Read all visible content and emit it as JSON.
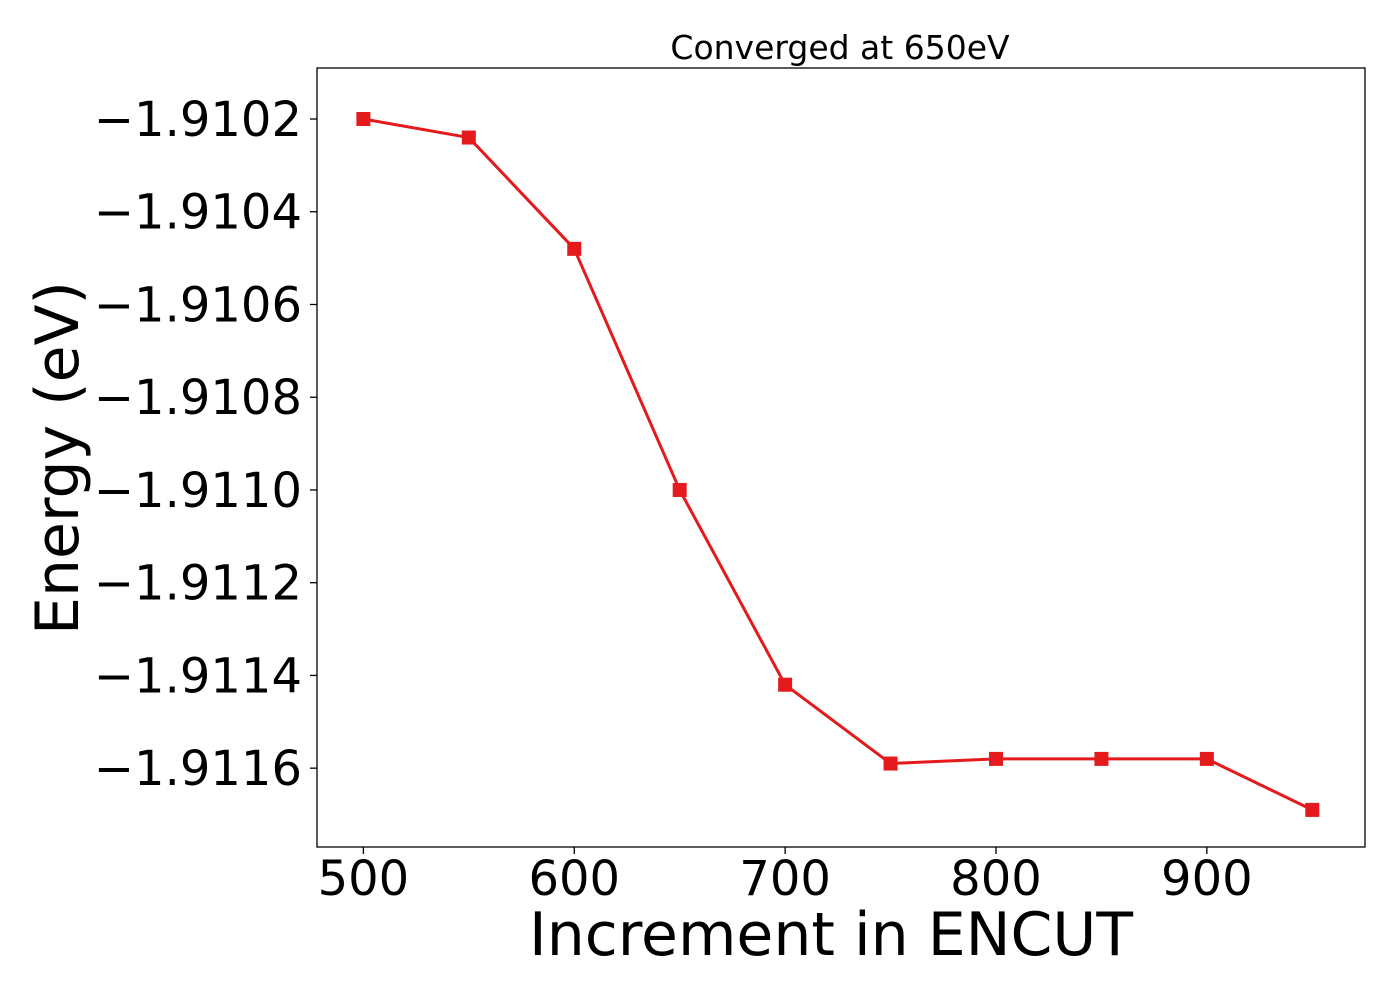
{
  "chart_data": {
    "type": "line",
    "title": "Converged at 650eV",
    "xlabel": "Increment in ENCUT",
    "ylabel": "Energy (eV)",
    "xlim": [
      478,
      975
    ],
    "ylim": [
      -1.91177,
      -1.91009
    ],
    "xticks": [
      500,
      600,
      700,
      800,
      900
    ],
    "xtick_labels": [
      "500",
      "600",
      "700",
      "800",
      "900"
    ],
    "yticks": [
      -1.9102,
      -1.9104,
      -1.9106,
      -1.9108,
      -1.911,
      -1.9112,
      -1.9114,
      -1.9116
    ],
    "ytick_labels": [
      "−1.9102",
      "−1.9104",
      "−1.9106",
      "−1.9108",
      "−1.9110",
      "−1.9112",
      "−1.9114",
      "−1.9116"
    ],
    "grid": false,
    "series": [
      {
        "color": "#e41a1c",
        "marker": "square",
        "x": [
          500,
          550,
          600,
          650,
          700,
          750,
          800,
          850,
          900,
          950
        ],
        "y": [
          -1.9102,
          -1.91024,
          -1.91048,
          -1.911,
          -1.91142,
          -1.91159,
          -1.91158,
          -1.91158,
          -1.91158,
          -1.91169
        ]
      }
    ]
  }
}
